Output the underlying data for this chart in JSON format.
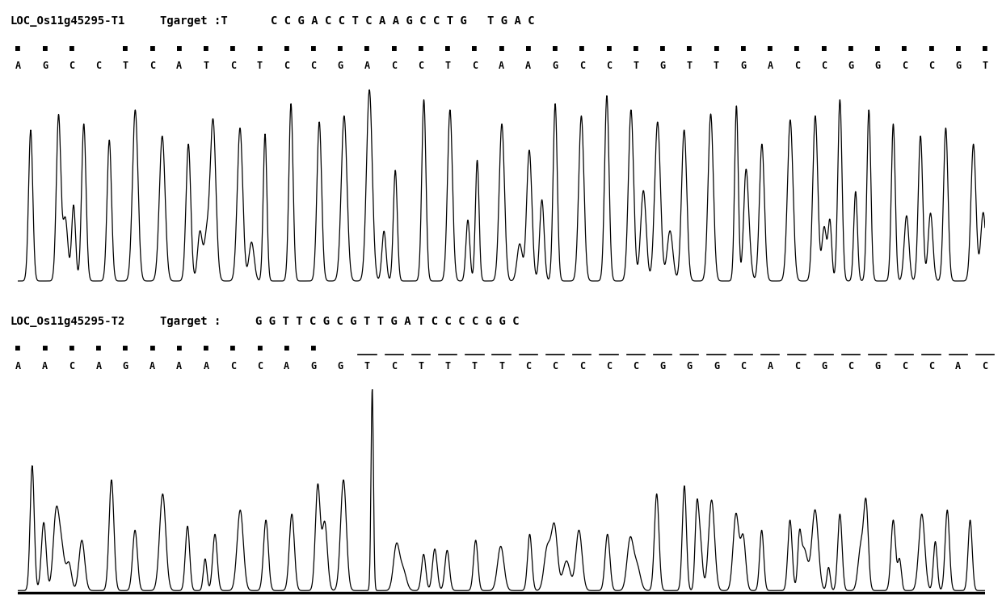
{
  "panel1_label": "LOC_Os11g45295-T1",
  "panel1_target_label": "Tgarget :T",
  "panel1_target_seq": "C C G A C C T C A A G C C T G   T G A C",
  "panel1_seq_list": [
    "A",
    "G",
    "C",
    "C",
    "T",
    "C",
    "A",
    "T",
    "C",
    "T",
    "C",
    "C",
    "G",
    "A",
    "C",
    "C",
    "T",
    "C",
    "A",
    "A",
    "G",
    "C",
    "C",
    "T",
    "G",
    "T",
    "T",
    "G",
    "A",
    "C",
    "C",
    "G",
    "G",
    "C",
    "C",
    "G",
    "T"
  ],
  "panel1_dots": [
    1,
    1,
    1,
    0,
    1,
    1,
    1,
    1,
    1,
    1,
    1,
    1,
    1,
    1,
    1,
    1,
    1,
    1,
    1,
    1,
    1,
    1,
    1,
    1,
    1,
    1,
    1,
    1,
    1,
    1,
    1,
    1,
    1,
    1,
    1,
    1,
    1
  ],
  "panel1_amplitudes": [
    0.75,
    0.82,
    0.78,
    0.7,
    0.85,
    0.72,
    0.68,
    0.8,
    0.76,
    0.73,
    0.88,
    0.79,
    0.82,
    0.95,
    0.55,
    0.9,
    0.85,
    0.6,
    0.78,
    0.65,
    0.88,
    0.82,
    0.92,
    0.85,
    0.79,
    0.75,
    0.83,
    0.87,
    0.68,
    0.8,
    0.82,
    0.9,
    0.85,
    0.78,
    0.72,
    0.76,
    0.68
  ],
  "panel2_label": "LOC_Os11g45295-T2",
  "panel2_target_label": "Tgarget :",
  "panel2_target_seq": "G G T T C G C G T T G A T C C C C G G C",
  "panel2_seq_list": [
    "A",
    "A",
    "C",
    "A",
    "G",
    "A",
    "A",
    "A",
    "C",
    "C",
    "A",
    "G",
    "G",
    "T",
    "C",
    "T",
    "T",
    "T",
    "T",
    "C",
    "C",
    "C",
    "C",
    "C",
    "G",
    "G",
    "G",
    "C",
    "A",
    "C",
    "G",
    "C",
    "G",
    "C",
    "C",
    "A",
    "C"
  ],
  "panel2_dots": [
    1,
    1,
    1,
    1,
    1,
    1,
    1,
    1,
    1,
    1,
    1,
    1,
    0,
    0,
    0,
    0,
    0,
    0,
    0,
    0,
    0,
    0,
    0,
    0,
    0,
    0,
    0,
    0,
    0,
    0,
    0,
    0,
    0,
    0,
    0,
    0,
    0
  ],
  "panel2_overline": [
    0,
    0,
    0,
    0,
    0,
    0,
    0,
    0,
    0,
    0,
    0,
    0,
    0,
    1,
    1,
    1,
    1,
    1,
    1,
    1,
    1,
    1,
    1,
    1,
    1,
    1,
    1,
    1,
    1,
    1,
    1,
    1,
    1,
    1,
    1,
    1,
    1
  ],
  "panel2_amplitudes": [
    0.62,
    0.35,
    0.25,
    0.55,
    0.3,
    0.48,
    0.32,
    0.28,
    0.4,
    0.35,
    0.38,
    0.52,
    0.55,
    1.0,
    0.22,
    0.18,
    0.2,
    0.25,
    0.22,
    0.28,
    0.32,
    0.3,
    0.28,
    0.25,
    0.48,
    0.52,
    0.45,
    0.38,
    0.3,
    0.35,
    0.4,
    0.38,
    0.42,
    0.35,
    0.38,
    0.4,
    0.35
  ],
  "bg_color": "#ffffff",
  "line_color": "#000000",
  "text_color": "#000000"
}
